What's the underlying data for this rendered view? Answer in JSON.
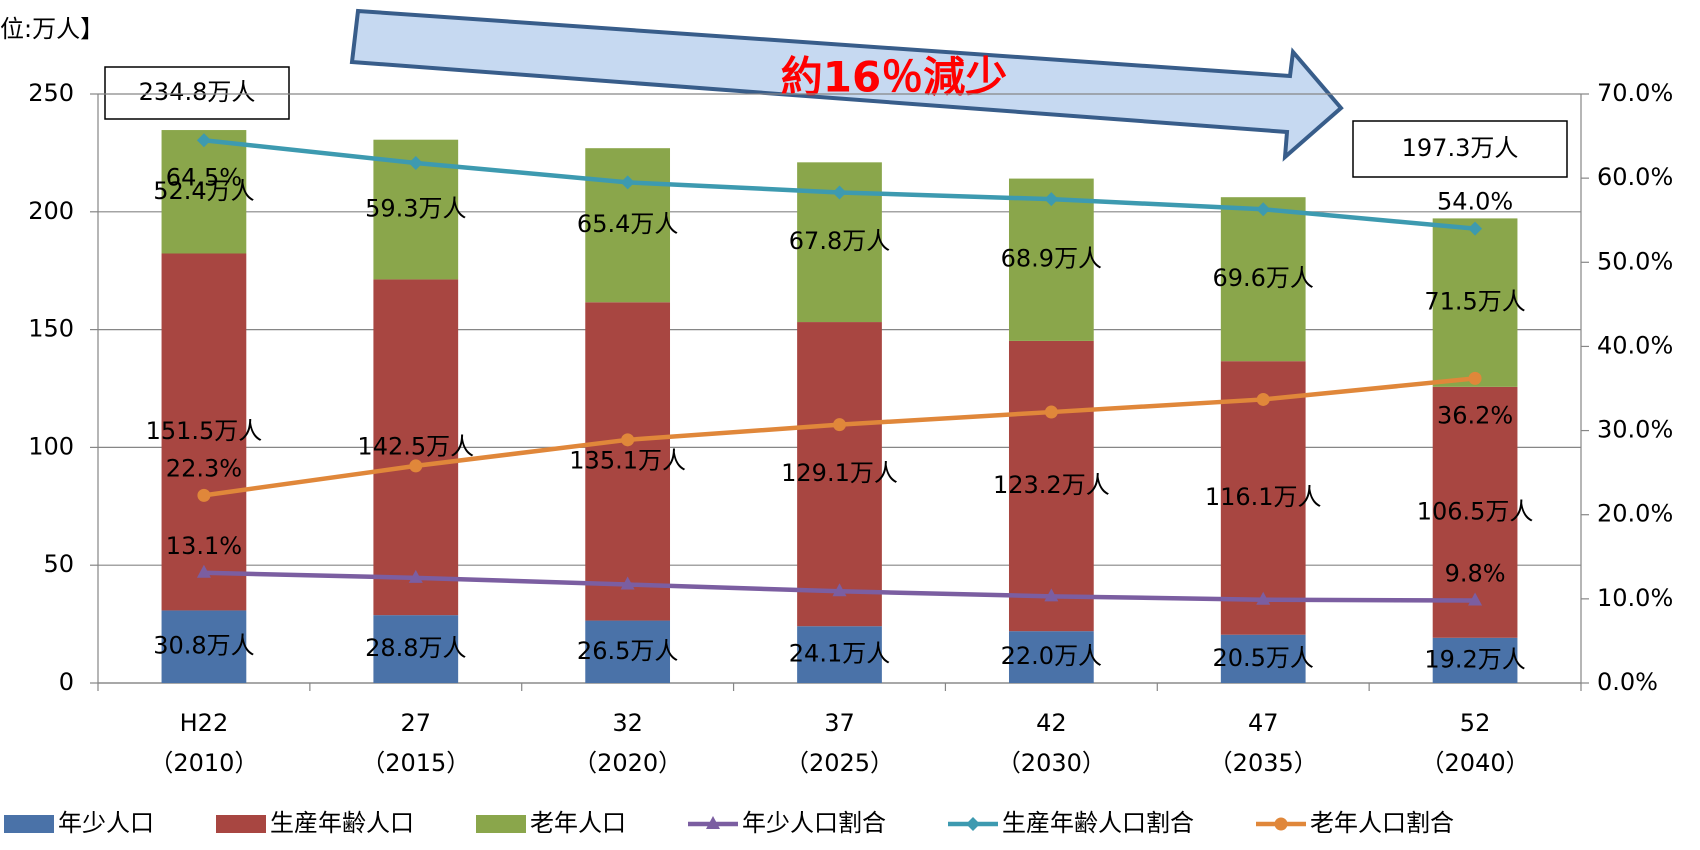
{
  "chart_data": {
    "type": "stacked_bar_line",
    "unit_label": "位:万人】",
    "arrow_label": "約16％減少",
    "total_labels": [
      "234.8万人",
      "197.3万人"
    ],
    "categories": [
      "H22",
      "27",
      "32",
      "37",
      "42",
      "47",
      "52"
    ],
    "category_years": [
      "（2010）",
      "（2015）",
      "（2020）",
      "（2025）",
      "（2030）",
      "（2035）",
      "（2040）"
    ],
    "ylim": [
      0,
      250
    ],
    "yticks": [
      0,
      50,
      100,
      150,
      200,
      250
    ],
    "y2lim": [
      0,
      70
    ],
    "y2ticks": [
      {
        "value": 0,
        "label": "0.0%"
      },
      {
        "value": 10,
        "label": "10.0%"
      },
      {
        "value": 20,
        "label": "20.0%"
      },
      {
        "value": 30,
        "label": "30.0%"
      },
      {
        "value": 40,
        "label": "40.0%"
      },
      {
        "value": 50,
        "label": "50.0%"
      },
      {
        "value": 60,
        "label": "60.0%"
      },
      {
        "value": 70,
        "label": "70.0%"
      }
    ],
    "grid": true,
    "legend": "bottom",
    "series": [
      {
        "name": "年少人口",
        "color": "#4a72a8",
        "values": [
          30.8,
          28.8,
          26.5,
          24.1,
          22.0,
          20.5,
          19.2
        ],
        "value_labels": [
          "30.8万人",
          "28.8万人",
          "26.5万人",
          "24.1万人",
          "22.0万人",
          "20.5万人",
          "19.2万人"
        ]
      },
      {
        "name": "生産年齢人口",
        "color": "#a84641",
        "values": [
          151.5,
          142.5,
          135.1,
          129.1,
          123.2,
          116.1,
          106.5
        ],
        "value_labels": [
          "151.5万人",
          "142.5万人",
          "135.1万人",
          "129.1万人",
          "123.2万人",
          "116.1万人",
          "106.5万人"
        ]
      },
      {
        "name": "老年人口",
        "color": "#8aa64b",
        "values": [
          52.4,
          59.3,
          65.4,
          67.8,
          68.9,
          69.6,
          71.5
        ],
        "value_labels": [
          "52.4万人",
          "59.3万人",
          "65.4万人",
          "67.8万人",
          "68.9万人",
          "69.6万人",
          "71.5万人"
        ]
      },
      {
        "name": "年少人口割合",
        "color": "#7b5ea1",
        "axis": "y2",
        "marker": "triangle",
        "values": [
          13.1,
          12.5,
          11.7,
          10.9,
          10.3,
          9.9,
          9.8
        ],
        "value_labels": [
          "13.1%",
          null,
          null,
          null,
          null,
          null,
          "9.8%"
        ]
      },
      {
        "name": "生産年齢人口割合",
        "color": "#3d9ab0",
        "axis": "y2",
        "marker": "diamond",
        "values": [
          64.5,
          61.8,
          59.5,
          58.3,
          57.5,
          56.3,
          54.0
        ],
        "value_labels": [
          "64.5%",
          null,
          null,
          null,
          null,
          null,
          "54.0%"
        ]
      },
      {
        "name": "老年人口割合",
        "color": "#e0873a",
        "axis": "y2",
        "marker": "circle",
        "values": [
          22.3,
          25.8,
          28.9,
          30.7,
          32.2,
          33.7,
          36.2
        ],
        "value_labels": [
          "22.3%",
          null,
          null,
          null,
          null,
          null,
          "36.2%"
        ]
      }
    ]
  }
}
